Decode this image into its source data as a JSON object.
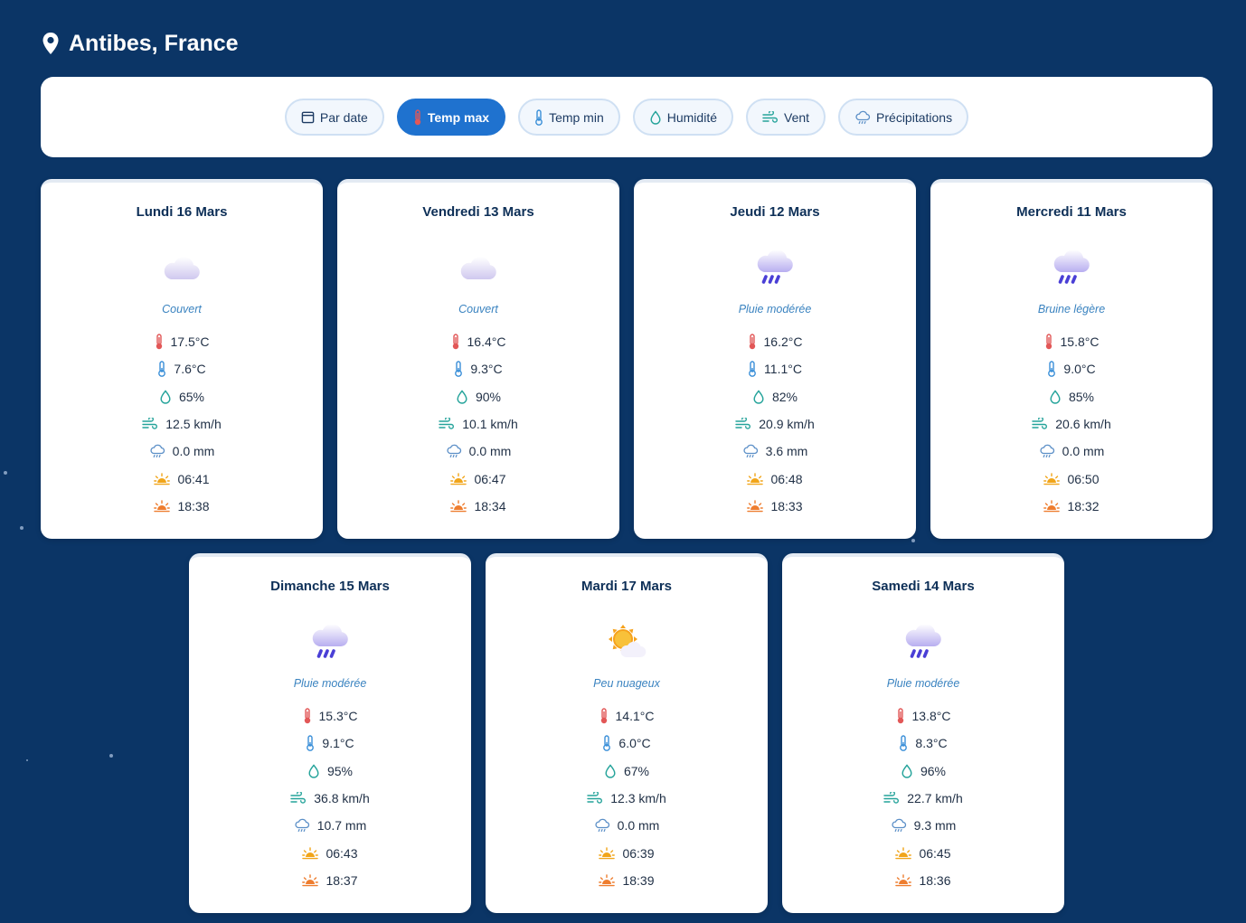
{
  "location": "Antibes, France",
  "filters": [
    {
      "label": "Par date",
      "icon": "calendar-icon",
      "active": false
    },
    {
      "label": "Temp max",
      "icon": "thermometer-hot-icon",
      "active": true
    },
    {
      "label": "Temp min",
      "icon": "thermometer-cold-icon",
      "active": false
    },
    {
      "label": "Humidité",
      "icon": "droplet-icon",
      "active": false
    },
    {
      "label": "Vent",
      "icon": "wind-icon",
      "active": false
    },
    {
      "label": "Précipitations",
      "icon": "rain-cloud-icon",
      "active": false
    }
  ],
  "days": [
    {
      "date": "Lundi 16 Mars",
      "weather_icon": "cloud-icon",
      "condition": "Couvert",
      "temp_max": "17.5°C",
      "temp_min": "7.6°C",
      "humidity": "65%",
      "wind": "12.5 km/h",
      "precip": "0.0 mm",
      "sunrise": "06:41",
      "sunset": "18:38"
    },
    {
      "date": "Vendredi 13 Mars",
      "weather_icon": "cloud-icon",
      "condition": "Couvert",
      "temp_max": "16.4°C",
      "temp_min": "9.3°C",
      "humidity": "90%",
      "wind": "10.1 km/h",
      "precip": "0.0 mm",
      "sunrise": "06:47",
      "sunset": "18:34"
    },
    {
      "date": "Jeudi 12 Mars",
      "weather_icon": "rain-cloud-icon",
      "condition": "Pluie modérée",
      "temp_max": "16.2°C",
      "temp_min": "11.1°C",
      "humidity": "82%",
      "wind": "20.9 km/h",
      "precip": "3.6 mm",
      "sunrise": "06:48",
      "sunset": "18:33"
    },
    {
      "date": "Mercredi 11 Mars",
      "weather_icon": "rain-cloud-icon",
      "condition": "Bruine légère",
      "temp_max": "15.8°C",
      "temp_min": "9.0°C",
      "humidity": "85%",
      "wind": "20.6 km/h",
      "precip": "0.0 mm",
      "sunrise": "06:50",
      "sunset": "18:32"
    },
    {
      "date": "Dimanche 15 Mars",
      "weather_icon": "rain-cloud-icon",
      "condition": "Pluie modérée",
      "temp_max": "15.3°C",
      "temp_min": "9.1°C",
      "humidity": "95%",
      "wind": "36.8 km/h",
      "precip": "10.7 mm",
      "sunrise": "06:43",
      "sunset": "18:37"
    },
    {
      "date": "Mardi 17 Mars",
      "weather_icon": "sun-cloud-icon",
      "condition": "Peu nuageux",
      "temp_max": "14.1°C",
      "temp_min": "6.0°C",
      "humidity": "67%",
      "wind": "12.3 km/h",
      "precip": "0.0 mm",
      "sunrise": "06:39",
      "sunset": "18:39"
    },
    {
      "date": "Samedi 14 Mars",
      "weather_icon": "rain-cloud-icon",
      "condition": "Pluie modérée",
      "temp_max": "13.8°C",
      "temp_min": "8.3°C",
      "humidity": "96%",
      "wind": "22.7 km/h",
      "precip": "9.3 mm",
      "sunrise": "06:45",
      "sunset": "18:36"
    }
  ],
  "colors": {
    "background": "#0b3566",
    "active_filter": "#1f72cf",
    "temp_max": "#e25757",
    "temp_min": "#3a8fd8",
    "humidity": "#24a39a",
    "wind": "#24a39a",
    "precip": "#5b8fc7",
    "sun": "#f1a51a"
  }
}
